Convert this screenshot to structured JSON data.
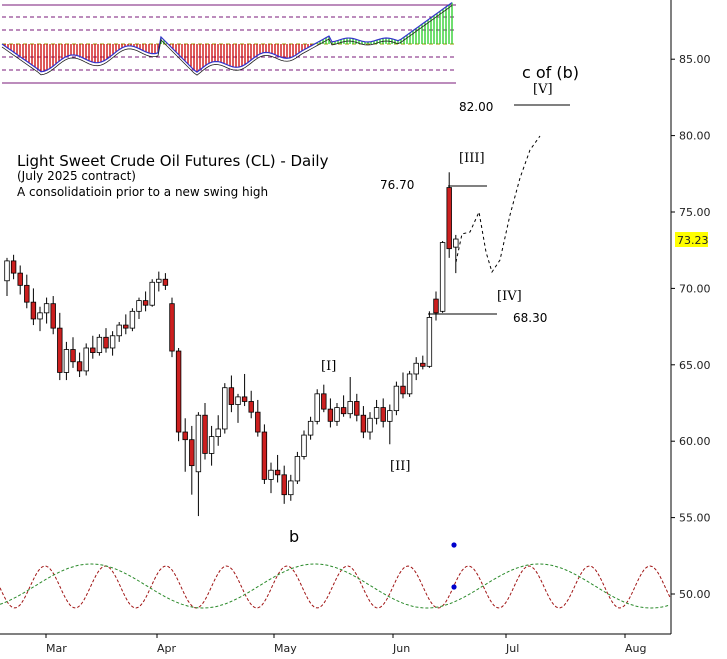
{
  "chart_data": {
    "type": "candlestick",
    "title": "Light Sweet Crude Oil Futures (CL) - Daily",
    "subtitle_1": "(July 2025 contract)",
    "subtitle_2": "A consolidatioin prior to a new swing high",
    "ylim": [
      47.5,
      89.0
    ],
    "y_ticks": [
      "50.00",
      "55.00",
      "60.00",
      "65.00",
      "70.00",
      "75.00",
      "80.00",
      "85.00"
    ],
    "x_ticks": [
      "Mar",
      "Apr",
      "May",
      "Jun",
      "Jul",
      "Aug"
    ],
    "last_price": "73.23",
    "grid": false,
    "candles": [
      {
        "o": 70.5,
        "h": 72.0,
        "l": 69.5,
        "c": 71.8
      },
      {
        "o": 71.8,
        "h": 72.2,
        "l": 70.6,
        "c": 71.0
      },
      {
        "o": 71.0,
        "h": 71.5,
        "l": 69.6,
        "c": 70.2
      },
      {
        "o": 70.2,
        "h": 70.9,
        "l": 68.7,
        "c": 69.1
      },
      {
        "o": 69.1,
        "h": 70.0,
        "l": 67.6,
        "c": 68.0
      },
      {
        "o": 68.0,
        "h": 68.8,
        "l": 67.2,
        "c": 68.4
      },
      {
        "o": 68.4,
        "h": 69.4,
        "l": 67.7,
        "c": 69.0
      },
      {
        "o": 69.0,
        "h": 69.5,
        "l": 67.0,
        "c": 67.4
      },
      {
        "o": 67.4,
        "h": 68.4,
        "l": 64.0,
        "c": 64.5
      },
      {
        "o": 64.5,
        "h": 66.5,
        "l": 64.0,
        "c": 66.0
      },
      {
        "o": 66.0,
        "h": 66.8,
        "l": 64.8,
        "c": 65.2
      },
      {
        "o": 65.2,
        "h": 65.8,
        "l": 64.2,
        "c": 64.6
      },
      {
        "o": 64.6,
        "h": 66.4,
        "l": 64.3,
        "c": 66.1
      },
      {
        "o": 66.1,
        "h": 66.9,
        "l": 65.4,
        "c": 65.8
      },
      {
        "o": 65.8,
        "h": 67.0,
        "l": 65.6,
        "c": 66.8
      },
      {
        "o": 66.8,
        "h": 67.4,
        "l": 65.8,
        "c": 66.1
      },
      {
        "o": 66.1,
        "h": 67.2,
        "l": 65.6,
        "c": 66.9
      },
      {
        "o": 66.9,
        "h": 67.8,
        "l": 66.5,
        "c": 67.6
      },
      {
        "o": 67.6,
        "h": 68.3,
        "l": 67.0,
        "c": 67.4
      },
      {
        "o": 67.4,
        "h": 68.7,
        "l": 67.2,
        "c": 68.5
      },
      {
        "o": 68.5,
        "h": 69.4,
        "l": 68.0,
        "c": 69.2
      },
      {
        "o": 69.2,
        "h": 69.8,
        "l": 68.5,
        "c": 68.9
      },
      {
        "o": 68.9,
        "h": 70.6,
        "l": 68.8,
        "c": 70.4
      },
      {
        "o": 70.4,
        "h": 71.1,
        "l": 69.8,
        "c": 70.6
      },
      {
        "o": 70.6,
        "h": 71.0,
        "l": 69.9,
        "c": 70.2
      },
      {
        "o": 69.0,
        "h": 69.4,
        "l": 65.5,
        "c": 65.9
      },
      {
        "o": 65.9,
        "h": 66.1,
        "l": 60.0,
        "c": 60.6
      },
      {
        "o": 60.6,
        "h": 61.5,
        "l": 58.0,
        "c": 60.1
      },
      {
        "o": 60.1,
        "h": 61.0,
        "l": 56.5,
        "c": 58.4
      },
      {
        "o": 58.0,
        "h": 61.9,
        "l": 55.1,
        "c": 61.7
      },
      {
        "o": 61.7,
        "h": 62.5,
        "l": 58.8,
        "c": 59.2
      },
      {
        "o": 59.2,
        "h": 61.0,
        "l": 58.4,
        "c": 60.3
      },
      {
        "o": 60.3,
        "h": 61.7,
        "l": 59.7,
        "c": 60.8
      },
      {
        "o": 60.8,
        "h": 63.8,
        "l": 60.5,
        "c": 63.5
      },
      {
        "o": 63.5,
        "h": 64.3,
        "l": 61.9,
        "c": 62.4
      },
      {
        "o": 62.4,
        "h": 63.1,
        "l": 61.2,
        "c": 62.9
      },
      {
        "o": 62.9,
        "h": 64.4,
        "l": 62.3,
        "c": 62.6
      },
      {
        "o": 62.6,
        "h": 63.3,
        "l": 61.5,
        "c": 61.9
      },
      {
        "o": 61.9,
        "h": 62.7,
        "l": 60.3,
        "c": 60.6
      },
      {
        "o": 60.6,
        "h": 61.1,
        "l": 57.2,
        "c": 57.5
      },
      {
        "o": 57.5,
        "h": 58.6,
        "l": 56.6,
        "c": 58.1
      },
      {
        "o": 58.1,
        "h": 59.1,
        "l": 57.3,
        "c": 57.8
      },
      {
        "o": 57.8,
        "h": 58.4,
        "l": 55.9,
        "c": 56.5
      },
      {
        "o": 56.5,
        "h": 57.8,
        "l": 56.1,
        "c": 57.4
      },
      {
        "o": 57.4,
        "h": 59.3,
        "l": 57.2,
        "c": 59.0
      },
      {
        "o": 59.0,
        "h": 60.7,
        "l": 58.8,
        "c": 60.4
      },
      {
        "o": 60.4,
        "h": 61.6,
        "l": 60.1,
        "c": 61.3
      },
      {
        "o": 61.3,
        "h": 63.4,
        "l": 61.1,
        "c": 63.1
      },
      {
        "o": 63.1,
        "h": 63.7,
        "l": 61.9,
        "c": 62.1
      },
      {
        "o": 62.1,
        "h": 62.8,
        "l": 60.9,
        "c": 61.3
      },
      {
        "o": 61.3,
        "h": 62.5,
        "l": 61.0,
        "c": 62.2
      },
      {
        "o": 62.2,
        "h": 63.0,
        "l": 61.6,
        "c": 61.8
      },
      {
        "o": 61.8,
        "h": 64.2,
        "l": 61.5,
        "c": 62.6
      },
      {
        "o": 62.6,
        "h": 63.1,
        "l": 61.3,
        "c": 61.7
      },
      {
        "o": 61.7,
        "h": 62.3,
        "l": 60.2,
        "c": 60.6
      },
      {
        "o": 60.6,
        "h": 61.9,
        "l": 60.1,
        "c": 61.5
      },
      {
        "o": 61.5,
        "h": 62.7,
        "l": 61.1,
        "c": 62.2
      },
      {
        "o": 62.2,
        "h": 62.8,
        "l": 60.9,
        "c": 61.3
      },
      {
        "o": 61.3,
        "h": 62.4,
        "l": 59.8,
        "c": 62.0
      },
      {
        "o": 62.0,
        "h": 63.9,
        "l": 61.7,
        "c": 63.6
      },
      {
        "o": 63.6,
        "h": 64.5,
        "l": 62.8,
        "c": 63.1
      },
      {
        "o": 63.1,
        "h": 64.6,
        "l": 62.9,
        "c": 64.4
      },
      {
        "o": 64.4,
        "h": 65.5,
        "l": 64.0,
        "c": 65.1
      },
      {
        "o": 65.1,
        "h": 65.6,
        "l": 64.7,
        "c": 64.9
      },
      {
        "o": 64.9,
        "h": 68.5,
        "l": 64.8,
        "c": 68.1
      },
      {
        "o": 69.3,
        "h": 69.8,
        "l": 67.9,
        "c": 68.4
      },
      {
        "o": 68.5,
        "h": 73.1,
        "l": 68.4,
        "c": 73.0
      },
      {
        "o": 76.6,
        "h": 77.6,
        "l": 72.0,
        "c": 72.6
      },
      {
        "o": 72.7,
        "h": 73.5,
        "l": 71.0,
        "c": 73.23
      }
    ],
    "annotations": {
      "wave_I": "[I]",
      "wave_II": "[II]",
      "wave_III": "[III]",
      "wave_IV": "[IV]",
      "wave_V": "[V]",
      "wave_b": "b",
      "wave_c_of_b": "c of (b)",
      "level_82": "82.00",
      "level_76": "76.70",
      "level_68": "68.30"
    },
    "colors": {
      "bull_candle": "#ffffff",
      "bear_candle": "#cc1f1f",
      "candle_outline": "#000000",
      "cycle_red": "#a01414",
      "cycle_green": "#2a8a2a",
      "marker_blue": "#0000cc",
      "osc_green": "#22cc22",
      "osc_red": "#cc0000",
      "osc_line": "#3333cc",
      "band_line": "#7a1a7a",
      "guide_line": "#999900",
      "price_tag": "#ffff00"
    }
  }
}
